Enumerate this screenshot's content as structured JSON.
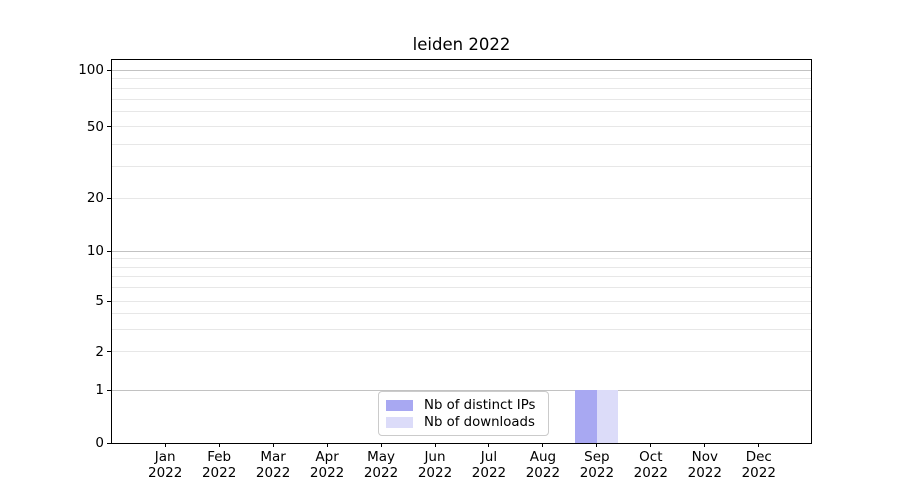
{
  "chart_data": {
    "type": "bar",
    "title": "leiden 2022",
    "categories": [
      "Jan 2022",
      "Feb 2022",
      "Mar 2022",
      "Apr 2022",
      "May 2022",
      "Jun 2022",
      "Jul 2022",
      "Aug 2022",
      "Sep 2022",
      "Oct 2022",
      "Nov 2022",
      "Dec 2022"
    ],
    "x_tick_top": [
      "Jan",
      "Feb",
      "Mar",
      "Apr",
      "May",
      "Jun",
      "Jul",
      "Aug",
      "Sep",
      "Oct",
      "Nov",
      "Dec"
    ],
    "x_tick_bottom": "2022",
    "series": [
      {
        "name": "Nb of distinct IPs",
        "color": "#a8a8f2",
        "values": [
          0,
          0,
          0,
          0,
          0,
          0,
          0,
          0,
          1,
          0,
          0,
          0
        ]
      },
      {
        "name": "Nb of downloads",
        "color": "#dcdcf9",
        "values": [
          0,
          0,
          0,
          0,
          0,
          0,
          0,
          0,
          1,
          0,
          0,
          0
        ]
      }
    ],
    "y_axis": {
      "scale": "symlog",
      "labeled_ticks": [
        100,
        50,
        20,
        10,
        5,
        2,
        1,
        0
      ],
      "major_grid_values": [
        1,
        10,
        100
      ],
      "minor_grid_values": [
        2,
        3,
        4,
        5,
        6,
        7,
        8,
        9,
        20,
        30,
        40,
        50,
        60,
        70,
        80,
        90
      ],
      "ylim": [
        0,
        113
      ],
      "grid": "both",
      "grid_major_color": "#c2c2c2",
      "grid_minor_color": "#e7e7e7"
    },
    "legend": {
      "position": "lower center",
      "entries": [
        "Nb of distinct IPs",
        "Nb of downloads"
      ]
    }
  }
}
